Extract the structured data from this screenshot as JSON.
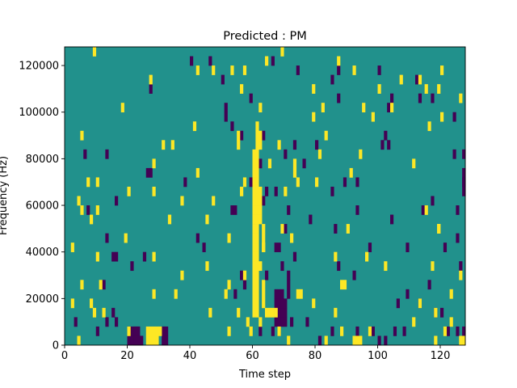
{
  "chart_data": {
    "type": "heatmap",
    "title": "Predicted : PM",
    "xlabel": "Time step",
    "ylabel": "Frequency (Hz)",
    "xlim": [
      0,
      128
    ],
    "ylim": [
      0,
      128000
    ],
    "x_ticks": [
      0,
      20,
      40,
      60,
      80,
      100,
      120
    ],
    "y_ticks": [
      0,
      20000,
      40000,
      60000,
      80000,
      100000,
      120000
    ],
    "n_time_steps": 128,
    "n_freq_bins": 32,
    "bin_height_hz": 4000,
    "background_value": 0.5,
    "colormap": {
      "low": "#440154",
      "mid": "#21918c",
      "high": "#fde725"
    },
    "cells_high": [
      [
        9,
        31
      ],
      [
        69,
        31
      ],
      [
        64,
        30
      ],
      [
        87,
        30
      ],
      [
        92,
        29
      ],
      [
        120,
        29
      ],
      [
        47,
        29
      ],
      [
        42,
        29
      ],
      [
        53,
        29
      ],
      [
        57,
        29
      ],
      [
        107,
        28
      ],
      [
        113,
        28
      ],
      [
        27,
        28
      ],
      [
        56,
        27
      ],
      [
        79,
        27
      ],
      [
        100,
        27
      ],
      [
        115,
        27
      ],
      [
        119,
        27
      ],
      [
        126,
        26
      ],
      [
        18,
        25
      ],
      [
        62,
        25
      ],
      [
        82,
        25
      ],
      [
        95,
        25
      ],
      [
        104,
        25
      ],
      [
        98,
        24
      ],
      [
        79,
        24
      ],
      [
        120,
        24
      ],
      [
        41,
        23
      ],
      [
        116,
        23
      ],
      [
        5,
        22
      ],
      [
        83,
        22
      ],
      [
        55,
        22
      ],
      [
        62,
        22
      ],
      [
        31,
        21
      ],
      [
        34,
        21
      ],
      [
        68,
        21
      ],
      [
        55,
        21
      ],
      [
        62,
        21
      ],
      [
        94,
        20
      ],
      [
        81,
        20
      ],
      [
        28,
        19
      ],
      [
        111,
        19
      ],
      [
        65,
        19
      ],
      [
        73,
        19
      ],
      [
        42,
        18
      ],
      [
        73,
        18
      ],
      [
        91,
        18
      ],
      [
        7,
        17
      ],
      [
        10,
        17
      ],
      [
        57,
        17
      ],
      [
        74,
        17
      ],
      [
        80,
        17
      ],
      [
        20,
        16
      ],
      [
        28,
        16
      ],
      [
        56,
        16
      ],
      [
        70,
        16
      ],
      [
        4,
        15
      ],
      [
        37,
        15
      ],
      [
        47,
        15
      ],
      [
        5,
        14
      ],
      [
        10,
        14
      ],
      [
        115,
        14
      ],
      [
        8,
        13
      ],
      [
        33,
        13
      ],
      [
        45,
        13
      ],
      [
        69,
        12
      ],
      [
        90,
        12
      ],
      [
        128,
        12
      ],
      [
        119,
        12
      ],
      [
        19,
        11
      ],
      [
        52,
        11
      ],
      [
        72,
        11
      ],
      [
        2,
        10
      ],
      [
        63,
        10
      ],
      [
        10,
        9
      ],
      [
        28,
        9
      ],
      [
        86,
        9
      ],
      [
        96,
        9
      ],
      [
        62,
        8
      ],
      [
        45,
        8
      ],
      [
        102,
        8
      ],
      [
        117,
        8
      ],
      [
        126,
        7
      ],
      [
        37,
        7
      ],
      [
        57,
        7
      ],
      [
        11,
        6
      ],
      [
        52,
        6
      ],
      [
        5,
        6
      ],
      [
        88,
        6
      ],
      [
        60,
        6
      ],
      [
        28,
        5
      ],
      [
        74,
        5
      ],
      [
        89,
        6
      ],
      [
        35,
        5
      ],
      [
        51,
        5
      ],
      [
        123,
        5
      ],
      [
        8,
        4
      ],
      [
        75,
        5
      ],
      [
        113,
        4
      ],
      [
        2,
        4
      ],
      [
        9,
        3
      ],
      [
        12,
        3
      ],
      [
        46,
        3
      ],
      [
        55,
        3
      ],
      [
        79,
        4
      ],
      [
        58,
        2
      ],
      [
        62,
        2
      ],
      [
        111,
        2
      ],
      [
        118,
        3
      ],
      [
        86,
        3
      ],
      [
        123,
        2
      ],
      [
        121,
        1
      ],
      [
        88,
        1
      ],
      [
        52,
        1
      ],
      [
        68,
        1
      ],
      [
        97,
        1
      ],
      [
        20,
        1
      ],
      [
        30,
        1
      ],
      [
        59,
        1
      ],
      [
        4,
        0
      ],
      [
        83,
        0
      ],
      [
        118,
        0
      ],
      [
        126,
        0
      ],
      [
        127,
        0
      ],
      [
        71,
        0
      ]
    ],
    "cells_low": [
      [
        40,
        30
      ],
      [
        46,
        30
      ],
      [
        66,
        30
      ],
      [
        87,
        29
      ],
      [
        74,
        29
      ],
      [
        100,
        29
      ],
      [
        112,
        28
      ],
      [
        50,
        28
      ],
      [
        85,
        28
      ],
      [
        27,
        27
      ],
      [
        113,
        26
      ],
      [
        117,
        26
      ],
      [
        59,
        26
      ],
      [
        87,
        26
      ],
      [
        104,
        26
      ],
      [
        103,
        25
      ],
      [
        51,
        25
      ],
      [
        124,
        24
      ],
      [
        51,
        24
      ],
      [
        53,
        23
      ],
      [
        56,
        22
      ],
      [
        102,
        22
      ],
      [
        63,
        22
      ],
      [
        103,
        21
      ],
      [
        73,
        21
      ],
      [
        80,
        21
      ],
      [
        101,
        21
      ],
      [
        124,
        20
      ],
      [
        6,
        20
      ],
      [
        13,
        20
      ],
      [
        127,
        20
      ],
      [
        70,
        20
      ],
      [
        62,
        19
      ],
      [
        76,
        19
      ],
      [
        26,
        18
      ],
      [
        27,
        18
      ],
      [
        127,
        18
      ],
      [
        38,
        17
      ],
      [
        59,
        17
      ],
      [
        89,
        17
      ],
      [
        93,
        17
      ],
      [
        127,
        17
      ],
      [
        64,
        16
      ],
      [
        67,
        16
      ],
      [
        85,
        16
      ],
      [
        63,
        15
      ],
      [
        16,
        15
      ],
      [
        117,
        15
      ],
      [
        54,
        14
      ],
      [
        53,
        14
      ],
      [
        7,
        14
      ],
      [
        71,
        14
      ],
      [
        93,
        14
      ],
      [
        114,
        14
      ],
      [
        125,
        14
      ],
      [
        60,
        13
      ],
      [
        78,
        13
      ],
      [
        104,
        13
      ],
      [
        86,
        12
      ],
      [
        70,
        12
      ],
      [
        13,
        11
      ],
      [
        42,
        11
      ],
      [
        125,
        11
      ],
      [
        44,
        10
      ],
      [
        67,
        10
      ],
      [
        97,
        10
      ],
      [
        109,
        10
      ],
      [
        68,
        10
      ],
      [
        121,
        10
      ],
      [
        15,
        9
      ],
      [
        25,
        9
      ],
      [
        16,
        9
      ],
      [
        73,
        9
      ],
      [
        21,
        8
      ],
      [
        69,
        8
      ],
      [
        87,
        8
      ],
      [
        126,
        8
      ],
      [
        71,
        7
      ],
      [
        56,
        7
      ],
      [
        92,
        7
      ],
      [
        12,
        6
      ],
      [
        57,
        6
      ],
      [
        64,
        7
      ],
      [
        71,
        6
      ],
      [
        116,
        6
      ],
      [
        54,
        5
      ],
      [
        71,
        5
      ],
      [
        109,
        5
      ],
      [
        113,
        4
      ],
      [
        106,
        4
      ],
      [
        118,
        3
      ],
      [
        120,
        3
      ],
      [
        15,
        3
      ],
      [
        16,
        2
      ],
      [
        3,
        2
      ],
      [
        13,
        2
      ],
      [
        62,
        1
      ],
      [
        66,
        1
      ],
      [
        68,
        1
      ],
      [
        85,
        1
      ],
      [
        105,
        1
      ],
      [
        122,
        1
      ],
      [
        125,
        1
      ],
      [
        20,
        1
      ],
      [
        23,
        1
      ],
      [
        22,
        1
      ],
      [
        31,
        1
      ],
      [
        10,
        1
      ],
      [
        70,
        2
      ],
      [
        72,
        2
      ],
      [
        77,
        2
      ],
      [
        93,
        1
      ],
      [
        98,
        1
      ],
      [
        100,
        0
      ],
      [
        102,
        0
      ],
      [
        108,
        1
      ],
      [
        81,
        0
      ],
      [
        22,
        0
      ],
      [
        23,
        0
      ],
      [
        24,
        0
      ],
      [
        127,
        1
      ]
    ],
    "cells_high_bands": [
      [
        60,
        3,
        20
      ],
      [
        61,
        3,
        23
      ],
      [
        62,
        13,
        16
      ],
      [
        63,
        10,
        12
      ],
      [
        63,
        4,
        6
      ],
      [
        64,
        3,
        3
      ],
      [
        65,
        3,
        3
      ],
      [
        66,
        3,
        3
      ],
      [
        67,
        3,
        3
      ],
      [
        26,
        0,
        1
      ],
      [
        27,
        0,
        1
      ],
      [
        28,
        0,
        1
      ],
      [
        29,
        0,
        1
      ],
      [
        92,
        0,
        0
      ],
      [
        93,
        0,
        0
      ],
      [
        94,
        0,
        0
      ],
      [
        119,
        12,
        12
      ]
    ],
    "cells_low_bands": [
      [
        67,
        2,
        5
      ],
      [
        68,
        2,
        5
      ],
      [
        69,
        2,
        5
      ],
      [
        20,
        0,
        1
      ],
      [
        21,
        0,
        1
      ],
      [
        22,
        0,
        1
      ],
      [
        23,
        0,
        1
      ],
      [
        24,
        0,
        0
      ],
      [
        31,
        0,
        1
      ],
      [
        32,
        0,
        1
      ],
      [
        127,
        16,
        17
      ],
      [
        128,
        16,
        17
      ],
      [
        70,
        3,
        4
      ]
    ]
  }
}
